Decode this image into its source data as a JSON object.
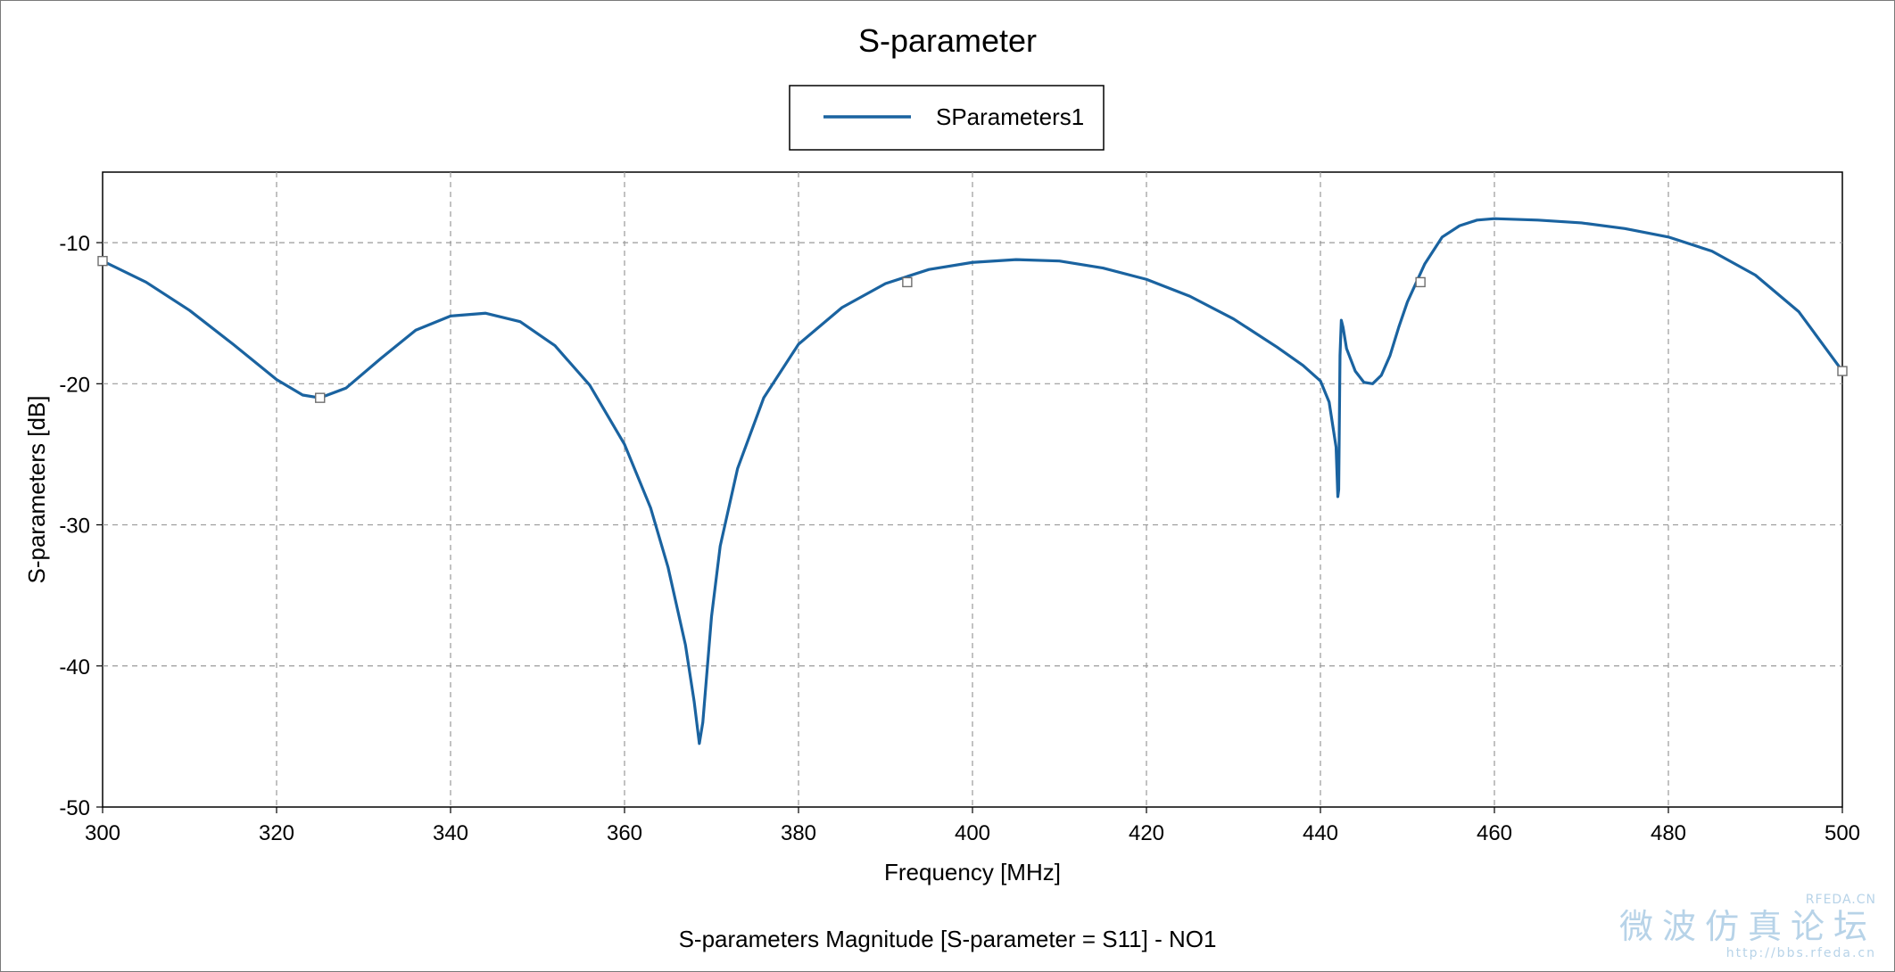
{
  "chart_data": {
    "type": "line",
    "title": "S-parameter",
    "xlabel": "Frequency [MHz]",
    "ylabel": "S-parameters [dB]",
    "footer": "S-parameters Magnitude [S-parameter = S11] - NO1",
    "xlim": [
      300,
      500
    ],
    "ylim": [
      -50,
      -5
    ],
    "xticks": [
      300,
      320,
      340,
      360,
      380,
      400,
      420,
      440,
      460,
      480,
      500
    ],
    "yticks": [
      -10,
      -20,
      -30,
      -40,
      -50
    ],
    "grid": true,
    "legend_position": "top-center",
    "line_color": "#1a63a0",
    "series": [
      {
        "name": "SParameters1",
        "x": [
          300,
          305,
          310,
          315,
          320,
          323,
          325,
          328,
          332,
          336,
          340,
          344,
          348,
          352,
          356,
          360,
          363,
          365,
          367,
          368,
          368.6,
          369,
          369.4,
          370,
          371,
          373,
          376,
          380,
          385,
          390,
          395,
          400,
          405,
          410,
          415,
          420,
          425,
          430,
          435,
          438,
          440,
          441,
          441.8,
          442,
          442.1,
          442.25,
          442.4,
          442.6,
          443,
          444,
          445,
          446,
          447,
          448,
          449,
          450,
          452,
          454,
          456,
          458,
          460,
          465,
          470,
          475,
          480,
          485,
          490,
          495,
          500
        ],
        "values": [
          -11.3,
          -12.8,
          -14.8,
          -17.2,
          -19.7,
          -20.8,
          -21.0,
          -20.3,
          -18.2,
          -16.2,
          -15.2,
          -15.0,
          -15.6,
          -17.3,
          -20.1,
          -24.3,
          -28.8,
          -33.0,
          -38.5,
          -42.5,
          -45.5,
          -44.0,
          -41.0,
          -36.5,
          -31.5,
          -26.0,
          -21.0,
          -17.2,
          -14.6,
          -12.9,
          -11.9,
          -11.4,
          -11.2,
          -11.3,
          -11.8,
          -12.6,
          -13.8,
          -15.4,
          -17.4,
          -18.7,
          -19.8,
          -21.3,
          -24.5,
          -28.0,
          -27.5,
          -18.0,
          -15.5,
          -16.0,
          -17.5,
          -19.1,
          -19.9,
          -20.0,
          -19.4,
          -18.0,
          -16.0,
          -14.2,
          -11.5,
          -9.6,
          -8.8,
          -8.4,
          -8.3,
          -8.4,
          -8.6,
          -9.0,
          -9.6,
          -10.6,
          -12.3,
          -14.9,
          -19.1
        ]
      }
    ],
    "markers": [
      {
        "x": 300,
        "y": -11.3
      },
      {
        "x": 325,
        "y": -21.0
      },
      {
        "x": 392.5,
        "y": -12.8
      },
      {
        "x": 451.5,
        "y": -12.8
      },
      {
        "x": 500,
        "y": -19.1
      }
    ]
  },
  "watermark": {
    "brand": "RFEDA.CN",
    "chinese": "微波仿真论坛",
    "url": "http://bbs.rfeda.cn"
  }
}
